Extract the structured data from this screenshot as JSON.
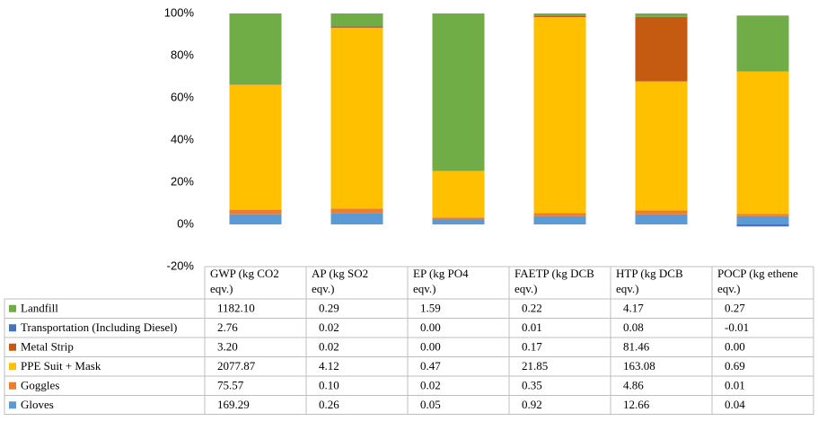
{
  "chart_data": {
    "type": "bar",
    "stacked": "percent",
    "categories": [
      "GWP (kg CO2 eqv.)",
      "AP (kg SO2 eqv.)",
      "EP (kg PO4 eqv.)",
      "FAETP (kg DCB eqv.)",
      "HTP (kg DCB eqv.)",
      "POCP (kg ethene eqv.)"
    ],
    "series": [
      {
        "name": "Landfill",
        "color": "#70ad47",
        "values": [
          1182.1,
          0.29,
          1.59,
          0.22,
          4.17,
          0.27
        ],
        "value_labels": [
          "1182.10",
          "0.29",
          "1.59",
          "0.22",
          "4.17",
          "0.27"
        ]
      },
      {
        "name": "Transportation (Including Diesel)",
        "color": "#4472c4",
        "values": [
          2.76,
          0.02,
          0,
          0.01,
          0.08,
          -0.01
        ],
        "value_labels": [
          "2.76",
          "0.02",
          "0.00",
          "0.01",
          "0.08",
          "-0.01"
        ]
      },
      {
        "name": "Metal Strip",
        "color": "#c55a11",
        "values": [
          3.2,
          0.02,
          0,
          0.17,
          81.46,
          0
        ],
        "value_labels": [
          "3.20",
          "0.02",
          "0.00",
          "0.17",
          "81.46",
          "0.00"
        ]
      },
      {
        "name": "PPE Suit + Mask",
        "color": "#ffc000",
        "values": [
          2077.87,
          4.12,
          0.47,
          21.85,
          163.08,
          0.69
        ],
        "value_labels": [
          "2077.87",
          "4.12",
          "0.47",
          "21.85",
          "163.08",
          "0.69"
        ]
      },
      {
        "name": "Goggles",
        "color": "#ed7d31",
        "values": [
          75.57,
          0.1,
          0.02,
          0.35,
          4.86,
          0.01
        ],
        "value_labels": [
          "75.57",
          "0.10",
          "0.02",
          "0.35",
          "4.86",
          "0.01"
        ]
      },
      {
        "name": "Gloves",
        "color": "#5b9bd5",
        "values": [
          169.29,
          0.26,
          0.05,
          0.92,
          12.66,
          0.04
        ],
        "value_labels": [
          "169.29",
          "0.26",
          "0.05",
          "0.92",
          "12.66",
          "0.04"
        ]
      }
    ],
    "ylim": [
      -20,
      100
    ],
    "yticks": [
      {
        "value": -20,
        "label": "-20%"
      },
      {
        "value": 0,
        "label": "0%"
      },
      {
        "value": 20,
        "label": "20%"
      },
      {
        "value": 40,
        "label": "40%"
      },
      {
        "value": 60,
        "label": "60%"
      },
      {
        "value": 80,
        "label": "80%"
      },
      {
        "value": 100,
        "label": "100%"
      }
    ],
    "grid": false
  }
}
